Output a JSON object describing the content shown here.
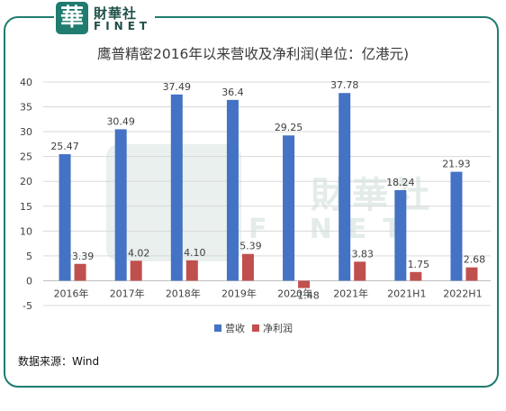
{
  "logo": {
    "mark": "華",
    "name_cn": "財華社",
    "name_en": "FINET"
  },
  "watermark": {
    "name_cn": "財華社",
    "name_en": "FINET"
  },
  "colors": {
    "revenue": "#4472c4",
    "profit": "#c0504d",
    "frame": "#1f7c6e"
  },
  "source": "数据来源：Wind",
  "chart_data": {
    "type": "bar",
    "title": "鹰普精密2016年以来营收及净利润(单位：亿港元)",
    "categories": [
      "2016年",
      "2017年",
      "2018年",
      "2019年",
      "2020年",
      "2021年",
      "2021H1",
      "2022H1"
    ],
    "series": [
      {
        "name": "营收",
        "values": [
          25.47,
          30.49,
          37.49,
          36.4,
          29.25,
          37.78,
          18.24,
          21.93
        ],
        "labels": [
          "25.47",
          "30.49",
          "37.49",
          "36.4",
          "29.25",
          "37.78",
          "18.24",
          "21.93"
        ]
      },
      {
        "name": "净利润",
        "values": [
          3.39,
          4.02,
          4.1,
          5.39,
          -1.48,
          3.83,
          1.75,
          2.68
        ],
        "labels": [
          "3.39",
          "4.02",
          "4.10",
          "5.39",
          "-1.48",
          "3.83",
          "1.75",
          "2.68"
        ]
      }
    ],
    "ylim": [
      -5,
      40
    ],
    "yticks": [
      "-5",
      "0",
      "5",
      "10",
      "15",
      "20",
      "25",
      "30",
      "35",
      "40"
    ],
    "grid": true,
    "legend_position": "bottom"
  }
}
